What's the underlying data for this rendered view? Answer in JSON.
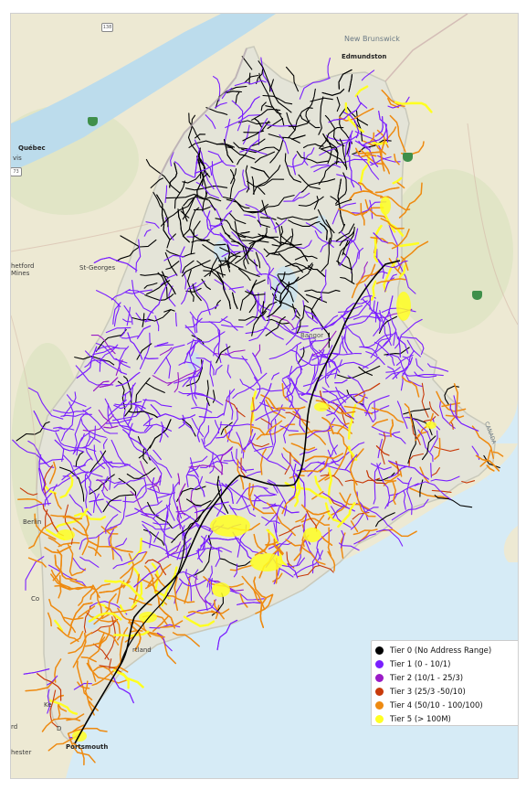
{
  "map": {
    "place_labels": [
      {
        "id": "new-brunswick",
        "text": "New Brunswick"
      },
      {
        "id": "edmundston",
        "text": "Edmundston"
      },
      {
        "id": "quebec",
        "text": "Québec"
      },
      {
        "id": "levis",
        "text": "vis"
      },
      {
        "id": "thetford-mines",
        "text": "hetford\nMines"
      },
      {
        "id": "st-georges",
        "text": "St-Georges"
      },
      {
        "id": "berlin",
        "text": "Berlin"
      },
      {
        "id": "concord",
        "text": "Co"
      },
      {
        "id": "portland",
        "text": "rtland"
      },
      {
        "id": "keene",
        "text": "Ke"
      },
      {
        "id": "dover",
        "text": "D"
      },
      {
        "id": "rd",
        "text": "rd"
      },
      {
        "id": "manchester",
        "text": "hester"
      },
      {
        "id": "portsmouth",
        "text": "Portsmouth"
      },
      {
        "id": "bangor",
        "text": "Bangor"
      },
      {
        "id": "canada",
        "text": "CANADA"
      },
      {
        "id": "route-138",
        "text": "138"
      },
      {
        "id": "route-73",
        "text": "73"
      }
    ]
  },
  "legend": {
    "items": [
      {
        "label": "Tier 0 (No Address Range)",
        "color": "#000000"
      },
      {
        "label": "Tier 1 (0 - 10/1)",
        "color": "#7a1fff"
      },
      {
        "label": "Tier 2 (10/1 - 25/3)",
        "color": "#9a1bc6"
      },
      {
        "label": "Tier 3 (25/3 -50/10)",
        "color": "#c83a0a"
      },
      {
        "label": "Tier 4 (50/10 - 100/100)",
        "color": "#ee8a10"
      },
      {
        "label": "Tier 5 (> 100M)",
        "color": "#ffff22"
      }
    ]
  },
  "colors": {
    "water": "#dbeef8",
    "land": "#efe9d6",
    "forest": "#dfe6c8",
    "maine": "#e3e3d8"
  }
}
